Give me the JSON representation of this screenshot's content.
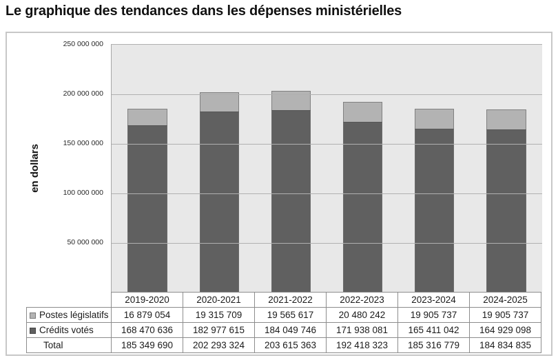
{
  "title": "Le graphique des tendances dans les dépenses ministérielles",
  "chart_data": {
    "type": "bar",
    "stacked": true,
    "title": "Le graphique des tendances dans les dépenses ministérielles",
    "ylabel": "en dollars",
    "xlabel": "",
    "ylim": [
      0,
      250000000
    ],
    "ytick_step": 50000000,
    "ytick_labels": [
      "50 000 000",
      "100 000 000",
      "150 000 000",
      "200 000 000",
      "250 000 000"
    ],
    "grid": true,
    "legend_position": "table-left",
    "categories": [
      "2019-2020",
      "2020-2021",
      "2021-2022",
      "2022-2023",
      "2023-2024",
      "2024-2025"
    ],
    "series": [
      {
        "name": "Postes législatifs",
        "color": "#b3b3b3",
        "border_color": "#808080",
        "values": [
          16879054,
          19315709,
          19565617,
          20480242,
          19905737,
          19905737
        ]
      },
      {
        "name": "Crédits votés",
        "color": "#606060",
        "border_color": "#565656",
        "values": [
          168470636,
          182977615,
          184049746,
          171938081,
          165411042,
          164929098
        ]
      }
    ],
    "totals": {
      "label": "Total",
      "values": [
        185349690,
        202293324,
        203615363,
        192418323,
        185316779,
        184834835
      ]
    }
  },
  "table": {
    "header_row": [
      "2019-2020",
      "2020-2021",
      "2021-2022",
      "2022-2023",
      "2023-2024",
      "2024-2025"
    ],
    "rows": [
      {
        "label": "Postes législatifs",
        "swatch_color": "#b3b3b3",
        "swatch_border": "#7a7a7a",
        "cells": [
          "16 879 054",
          "19 315 709",
          "19 565 617",
          "20 480 242",
          "19 905 737",
          "19 905 737"
        ]
      },
      {
        "label": "Crédits votés",
        "swatch_color": "#606060",
        "swatch_border": "#444444",
        "cells": [
          "168 470 636",
          "182 977 615",
          "184 049 746",
          "171 938 081",
          "165 411 042",
          "164 929 098"
        ]
      },
      {
        "label": "Total",
        "swatch_color": null,
        "swatch_border": null,
        "cells": [
          "185 349 690",
          "202 293 324",
          "203 615 363",
          "192 418 323",
          "185 316 779",
          "184 834 835"
        ]
      }
    ]
  }
}
